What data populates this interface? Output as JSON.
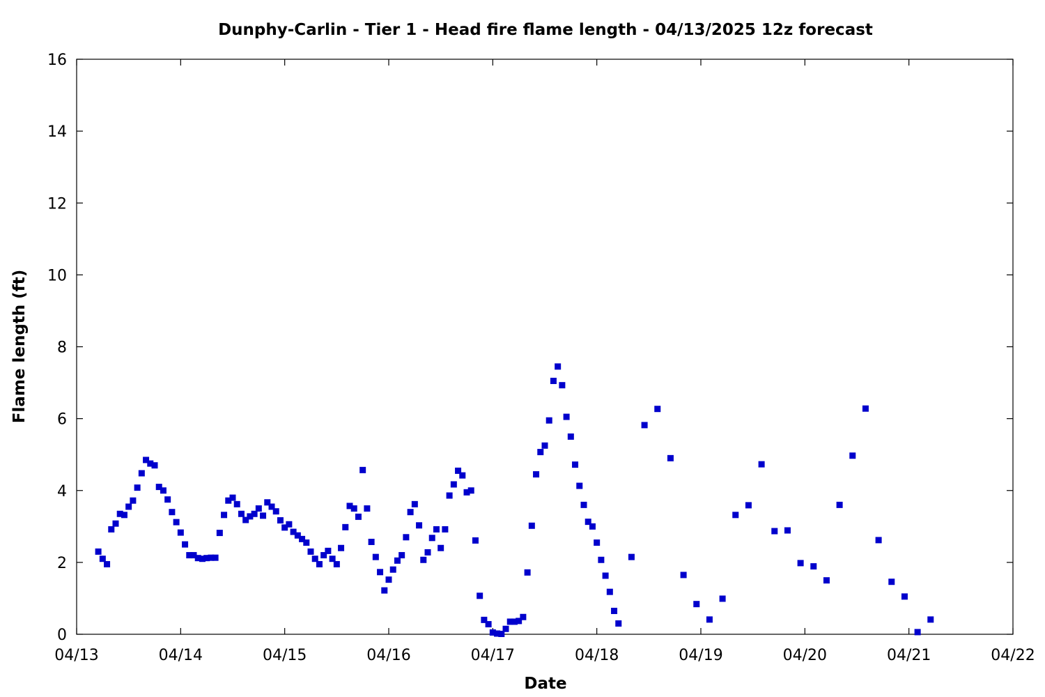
{
  "chart_data": {
    "type": "scatter",
    "title": "Dunphy-Carlin - Tier 1 - Head fire flame length - 04/13/2025 12z forecast",
    "xlabel": "Date",
    "ylabel": "Flame length (ft)",
    "x_is_date": true,
    "xlim": [
      "2025-04-13 00:00",
      "2025-04-22 00:00"
    ],
    "x_ticks": [
      "2025-04-13",
      "2025-04-14",
      "2025-04-15",
      "2025-04-16",
      "2025-04-17",
      "2025-04-18",
      "2025-04-19",
      "2025-04-20",
      "2025-04-21",
      "2025-04-22"
    ],
    "x_tick_labels": [
      "04/13",
      "04/14",
      "04/15",
      "04/16",
      "04/17",
      "04/18",
      "04/19",
      "04/20",
      "04/21",
      "04/22"
    ],
    "ylim": [
      0,
      16
    ],
    "y_ticks": [
      0,
      2,
      4,
      6,
      8,
      10,
      12,
      14,
      16
    ],
    "y_tick_labels": [
      "0",
      "2",
      "4",
      "6",
      "8",
      "10",
      "12",
      "14",
      "16"
    ],
    "grid": false,
    "series": [
      {
        "color": "#0000cc",
        "marker": "square",
        "x": [
          "2025-04-13 05:00",
          "2025-04-13 06:00",
          "2025-04-13 07:00",
          "2025-04-13 08:00",
          "2025-04-13 09:00",
          "2025-04-13 10:00",
          "2025-04-13 11:00",
          "2025-04-13 12:00",
          "2025-04-13 13:00",
          "2025-04-13 14:00",
          "2025-04-13 15:00",
          "2025-04-13 16:00",
          "2025-04-13 17:00",
          "2025-04-13 18:00",
          "2025-04-13 19:00",
          "2025-04-13 20:00",
          "2025-04-13 21:00",
          "2025-04-13 22:00",
          "2025-04-13 23:00",
          "2025-04-14 00:00",
          "2025-04-14 01:00",
          "2025-04-14 02:00",
          "2025-04-14 03:00",
          "2025-04-14 04:00",
          "2025-04-14 05:00",
          "2025-04-14 06:00",
          "2025-04-14 07:00",
          "2025-04-14 08:00",
          "2025-04-14 09:00",
          "2025-04-14 10:00",
          "2025-04-14 11:00",
          "2025-04-14 12:00",
          "2025-04-14 13:00",
          "2025-04-14 14:00",
          "2025-04-14 15:00",
          "2025-04-14 16:00",
          "2025-04-14 17:00",
          "2025-04-14 18:00",
          "2025-04-14 19:00",
          "2025-04-14 20:00",
          "2025-04-14 21:00",
          "2025-04-14 22:00",
          "2025-04-14 23:00",
          "2025-04-15 00:00",
          "2025-04-15 01:00",
          "2025-04-15 02:00",
          "2025-04-15 03:00",
          "2025-04-15 04:00",
          "2025-04-15 05:00",
          "2025-04-15 06:00",
          "2025-04-15 07:00",
          "2025-04-15 08:00",
          "2025-04-15 09:00",
          "2025-04-15 10:00",
          "2025-04-15 11:00",
          "2025-04-15 12:00",
          "2025-04-15 13:00",
          "2025-04-15 14:00",
          "2025-04-15 15:00",
          "2025-04-15 16:00",
          "2025-04-15 17:00",
          "2025-04-15 18:00",
          "2025-04-15 19:00",
          "2025-04-15 20:00",
          "2025-04-15 21:00",
          "2025-04-15 22:00",
          "2025-04-15 23:00",
          "2025-04-16 00:00",
          "2025-04-16 01:00",
          "2025-04-16 02:00",
          "2025-04-16 03:00",
          "2025-04-16 04:00",
          "2025-04-16 05:00",
          "2025-04-16 06:00",
          "2025-04-16 07:00",
          "2025-04-16 08:00",
          "2025-04-16 09:00",
          "2025-04-16 10:00",
          "2025-04-16 11:00",
          "2025-04-16 12:00",
          "2025-04-16 13:00",
          "2025-04-16 14:00",
          "2025-04-16 15:00",
          "2025-04-16 16:00",
          "2025-04-16 17:00",
          "2025-04-16 18:00",
          "2025-04-16 19:00",
          "2025-04-16 20:00",
          "2025-04-16 21:00",
          "2025-04-16 22:00",
          "2025-04-16 23:00",
          "2025-04-17 00:00",
          "2025-04-17 01:00",
          "2025-04-17 02:00",
          "2025-04-17 03:00",
          "2025-04-17 04:00",
          "2025-04-17 05:00",
          "2025-04-17 06:00",
          "2025-04-17 07:00",
          "2025-04-17 08:00",
          "2025-04-17 09:00",
          "2025-04-17 10:00",
          "2025-04-17 11:00",
          "2025-04-17 12:00",
          "2025-04-17 13:00",
          "2025-04-17 14:00",
          "2025-04-17 15:00",
          "2025-04-17 16:00",
          "2025-04-17 17:00",
          "2025-04-17 18:00",
          "2025-04-17 19:00",
          "2025-04-17 20:00",
          "2025-04-17 21:00",
          "2025-04-17 22:00",
          "2025-04-17 23:00",
          "2025-04-18 00:00",
          "2025-04-18 01:00",
          "2025-04-18 02:00",
          "2025-04-18 03:00",
          "2025-04-18 04:00",
          "2025-04-18 05:00",
          "2025-04-18 08:00",
          "2025-04-18 11:00",
          "2025-04-18 14:00",
          "2025-04-18 17:00",
          "2025-04-18 20:00",
          "2025-04-18 23:00",
          "2025-04-19 02:00",
          "2025-04-19 05:00",
          "2025-04-19 08:00",
          "2025-04-19 11:00",
          "2025-04-19 14:00",
          "2025-04-19 17:00",
          "2025-04-19 20:00",
          "2025-04-19 23:00",
          "2025-04-20 02:00",
          "2025-04-20 05:00",
          "2025-04-20 08:00",
          "2025-04-20 11:00",
          "2025-04-20 14:00",
          "2025-04-20 17:00",
          "2025-04-20 20:00",
          "2025-04-20 23:00",
          "2025-04-21 02:00",
          "2025-04-21 05:00"
        ],
        "y": [
          2.3,
          2.1,
          1.95,
          2.92,
          3.08,
          3.35,
          3.32,
          3.55,
          3.72,
          4.08,
          4.48,
          4.85,
          4.75,
          4.7,
          4.1,
          4.0,
          3.75,
          3.4,
          3.12,
          2.83,
          2.5,
          2.2,
          2.2,
          2.12,
          2.1,
          2.12,
          2.13,
          2.13,
          2.82,
          3.32,
          3.72,
          3.8,
          3.62,
          3.35,
          3.18,
          3.28,
          3.35,
          3.5,
          3.3,
          3.67,
          3.55,
          3.42,
          3.17,
          2.97,
          3.06,
          2.85,
          2.75,
          2.65,
          2.55,
          2.3,
          2.1,
          1.95,
          2.2,
          2.32,
          2.1,
          1.95,
          2.4,
          2.98,
          3.57,
          3.5,
          3.27,
          4.57,
          3.5,
          2.57,
          2.15,
          1.73,
          1.22,
          1.52,
          1.8,
          2.05,
          2.2,
          2.7,
          3.4,
          3.62,
          3.03,
          2.07,
          2.28,
          2.68,
          2.92,
          2.4,
          2.92,
          3.86,
          4.17,
          4.55,
          4.42,
          3.95,
          4.0,
          2.61,
          1.07,
          0.4,
          0.28,
          0.05,
          0.02,
          0.01,
          0.15,
          0.35,
          0.35,
          0.37,
          0.48,
          1.72,
          3.02,
          4.45,
          5.07,
          5.25,
          5.95,
          7.05,
          7.45,
          6.93,
          6.05,
          5.5,
          4.72,
          4.13,
          3.6,
          3.13,
          3.0,
          2.55,
          2.07,
          1.63,
          1.18,
          0.65,
          0.3,
          2.15,
          5.82,
          6.27,
          4.9,
          1.65,
          0.84,
          0.41,
          0.99,
          3.32,
          3.59,
          4.73,
          2.87,
          2.89,
          1.98,
          1.89,
          1.5,
          3.6,
          4.97,
          6.28,
          2.62,
          1.46,
          1.05,
          0.06,
          0.41
        ]
      }
    ]
  }
}
